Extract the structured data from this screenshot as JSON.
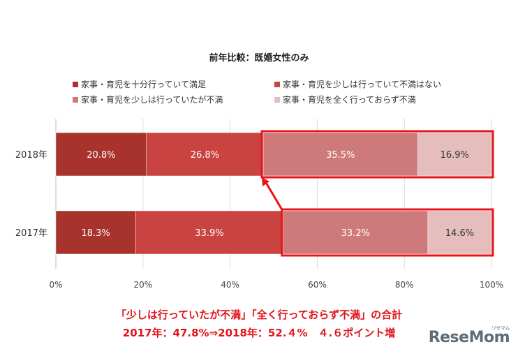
{
  "chart_data": {
    "type": "bar",
    "orientation": "horizontal",
    "stacked": "percent",
    "title": "前年比較：既婚女性のみ",
    "categories": [
      "2018年",
      "2017年"
    ],
    "series": [
      {
        "name": "家事・育児を十分行っていて満足",
        "values": [
          20.8,
          18.3
        ],
        "color": "#a8332c"
      },
      {
        "name": "家事・育児を少しは行っていて不満はない",
        "values": [
          26.8,
          33.9
        ],
        "color": "#c94340"
      },
      {
        "name": "家事・育児を少しは行っていたが不満",
        "values": [
          35.5,
          33.2
        ],
        "color": "#cf7a7a"
      },
      {
        "name": "家事・育児を全く行っておらず不満",
        "values": [
          16.9,
          14.6
        ],
        "color": "#e5bdbd"
      }
    ],
    "data_labels": [
      [
        "20.8%",
        "26.8%",
        "35.5%",
        "16.9%"
      ],
      [
        "18.3%",
        "33.9%",
        "33.2%",
        "14.6%"
      ]
    ],
    "x_ticks": [
      "0%",
      "20%",
      "40%",
      "60%",
      "80%",
      "100%"
    ],
    "xlim": [
      0,
      100
    ],
    "legend_position": "top",
    "highlight_color": "#e8141a"
  },
  "note": {
    "line1": "「少しは行っていたが不満」「全く行っておらず不満」の合計",
    "line2": "2017年：47.8%⇒2018年：52.４%　４.６ポイント増"
  },
  "logo": {
    "text": "ReseMom",
    "small": "リセマム"
  }
}
